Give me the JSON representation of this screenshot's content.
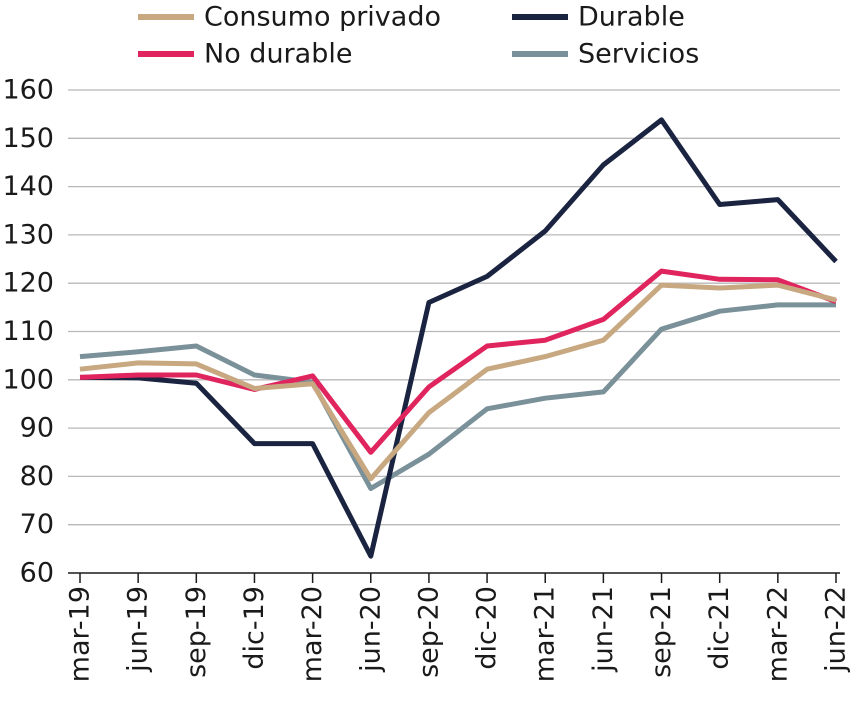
{
  "chart_data": {
    "type": "line",
    "title": "",
    "xlabel": "",
    "ylabel": "",
    "ylim": [
      60,
      160
    ],
    "yticks": [
      60,
      70,
      80,
      90,
      100,
      110,
      120,
      130,
      140,
      150,
      160
    ],
    "grid": "horizontal",
    "legend": "top",
    "categories": [
      "mar-19",
      "jun-19",
      "sep-19",
      "dic-19",
      "mar-20",
      "jun-20",
      "sep-20",
      "dic-20",
      "mar-21",
      "jun-21",
      "sep-21",
      "dic-21",
      "mar-22",
      "jun-22"
    ],
    "series": [
      {
        "name": "Consumo privado",
        "color": "#c7a880",
        "values": [
          102.2,
          103.5,
          103.3,
          98.2,
          99.2,
          79.5,
          93.2,
          102.2,
          104.8,
          108.2,
          119.6,
          119.0,
          119.6,
          116.5
        ]
      },
      {
        "name": "No durable",
        "color": "#e0245e",
        "values": [
          100.5,
          101.0,
          101.0,
          98.0,
          100.8,
          85.0,
          98.5,
          107.0,
          108.2,
          112.5,
          122.5,
          120.8,
          120.7,
          116.2
        ]
      },
      {
        "name": "Durable",
        "color": "#1a2440",
        "values": [
          100.5,
          100.4,
          99.3,
          86.8,
          86.8,
          63.5,
          116.0,
          121.4,
          130.8,
          144.5,
          153.8,
          136.3,
          137.3,
          124.5
        ]
      },
      {
        "name": "Servicios",
        "color": "#7b9199",
        "values": [
          104.8,
          105.8,
          107.0,
          101.0,
          99.5,
          77.5,
          84.6,
          94.0,
          96.2,
          97.5,
          110.5,
          114.2,
          115.5,
          115.5
        ]
      }
    ]
  }
}
